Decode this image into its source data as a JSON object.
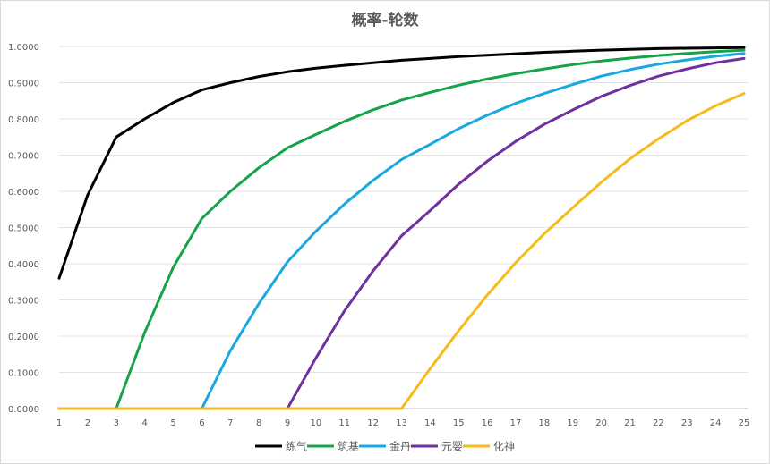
{
  "chart_data": {
    "type": "line",
    "title": "概率-轮数",
    "xlabel": "",
    "ylabel": "",
    "x": [
      1,
      2,
      3,
      4,
      5,
      6,
      7,
      8,
      9,
      10,
      11,
      12,
      13,
      14,
      15,
      16,
      17,
      18,
      19,
      20,
      21,
      22,
      23,
      24,
      25
    ],
    "ylim": [
      0,
      1
    ],
    "yticks": [
      "0.0000",
      "0.1000",
      "0.2000",
      "0.3000",
      "0.4000",
      "0.5000",
      "0.6000",
      "0.7000",
      "0.8000",
      "0.9000",
      "1.0000"
    ],
    "grid": true,
    "legend_position": "bottom",
    "series": [
      {
        "name": "练气",
        "color": "#000000",
        "values": [
          0.36,
          0.59,
          0.75,
          0.8,
          0.845,
          0.88,
          0.9,
          0.917,
          0.93,
          0.94,
          0.948,
          0.955,
          0.962,
          0.967,
          0.972,
          0.976,
          0.98,
          0.984,
          0.987,
          0.99,
          0.992,
          0.994,
          0.995,
          0.996,
          0.997
        ]
      },
      {
        "name": "筑基",
        "color": "#16a34a",
        "values": [
          0,
          0,
          0,
          0.21,
          0.39,
          0.525,
          0.6,
          0.665,
          0.72,
          0.757,
          0.793,
          0.825,
          0.852,
          0.873,
          0.893,
          0.91,
          0.925,
          0.938,
          0.95,
          0.96,
          0.968,
          0.975,
          0.981,
          0.986,
          0.99
        ]
      },
      {
        "name": "金丹",
        "color": "#19a8e0",
        "values": [
          0,
          0,
          0,
          0,
          0,
          0,
          0.16,
          0.29,
          0.405,
          0.49,
          0.565,
          0.63,
          0.688,
          0.73,
          0.773,
          0.81,
          0.843,
          0.87,
          0.895,
          0.918,
          0.936,
          0.951,
          0.963,
          0.973,
          0.981
        ]
      },
      {
        "name": "元婴",
        "color": "#7030a0",
        "values": [
          0,
          0,
          0,
          0,
          0,
          0,
          0,
          0,
          0,
          0.14,
          0.27,
          0.38,
          0.477,
          0.547,
          0.62,
          0.683,
          0.738,
          0.785,
          0.825,
          0.862,
          0.892,
          0.918,
          0.938,
          0.955,
          0.967
        ]
      },
      {
        "name": "化神",
        "color": "#f5bb1a",
        "values": [
          0,
          0,
          0,
          0,
          0,
          0,
          0,
          0,
          0,
          0,
          0,
          0,
          0,
          0.11,
          0.215,
          0.313,
          0.403,
          0.483,
          0.555,
          0.625,
          0.69,
          0.745,
          0.795,
          0.836,
          0.87
        ]
      }
    ]
  }
}
